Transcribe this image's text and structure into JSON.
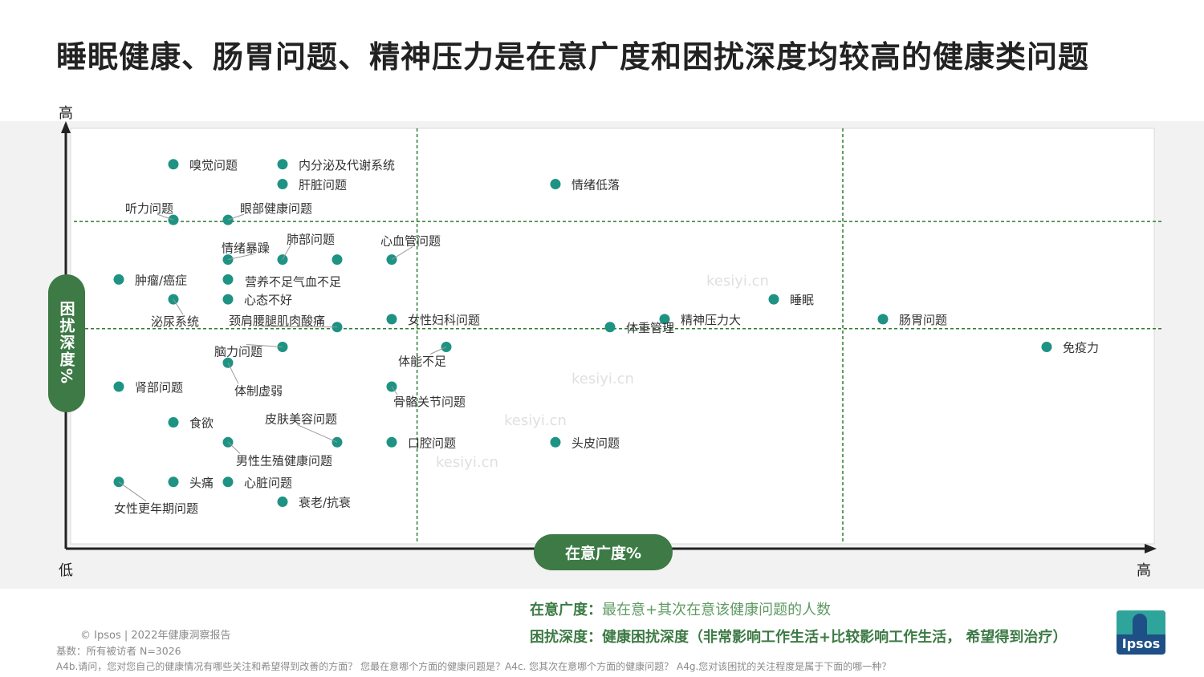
{
  "title": "睡眠健康、肠胃问题、精神压力是在意广度和困扰深度均较高的健康类问题",
  "axes": {
    "y_high": "高",
    "x_low": "低",
    "x_high": "高",
    "ylabel": "困扰深度%",
    "xlabel": "在意广度%"
  },
  "watermark": "kesiyi.cn",
  "notes": {
    "line1_key": "在意广度：",
    "line1_value": "最在意+其次在意该健康问题的人数",
    "line2_key": "困扰深度：",
    "line2_value": "健康困扰深度（非常影响工作生活+比较影响工作生活， 希望得到治疗）"
  },
  "footer": {
    "copyright": "© Ipsos | 2022年健康洞察报告",
    "base": "基数：所有被访者  N=3026",
    "question": "A4b.请问，您对您自己的健康情况有哪些关注和希望得到改善的方面？ 您最在意哪个方面的健康问题是？A4c. 您其次在意哪个方面的健康问题？ A4g.您对该困扰的关注程度是属于下面的哪一种？"
  },
  "logo_text": "Ipsos",
  "colors": {
    "point": "#1e9383",
    "accent": "#3d7a46",
    "gridline": "#2e7d32",
    "band": "#f2f2f2"
  },
  "chart_data": {
    "type": "scatter",
    "title": "睡眠健康、肠胃问题、精神压力是在意广度和困扰深度均较高的健康类问题",
    "xlabel": "在意广度%",
    "ylabel": "困扰深度%",
    "xlim": [
      0,
      100
    ],
    "ylim": [
      0,
      100
    ],
    "x_ticks": [
      "低",
      "高"
    ],
    "y_ticks": [
      "高"
    ],
    "grid": false,
    "reference_lines": {
      "x": [
        26,
        65
      ],
      "y": [
        82,
        55
      ]
    },
    "points": [
      {
        "name": "嗅觉问题",
        "x": 10,
        "y": 96
      },
      {
        "name": "内分泌及代谢系统",
        "x": 20,
        "y": 96
      },
      {
        "name": "肝脏问题",
        "x": 20,
        "y": 91
      },
      {
        "name": "情绪低落",
        "x": 45,
        "y": 91
      },
      {
        "name": "听力问题",
        "x": 10,
        "y": 82
      },
      {
        "name": "眼部健康问题",
        "x": 15,
        "y": 82
      },
      {
        "name": "情绪暴躁",
        "x": 15,
        "y": 72
      },
      {
        "name": "肺部问题",
        "x": 20,
        "y": 72
      },
      {
        "name": "气血不足",
        "x": 25,
        "y": 72
      },
      {
        "name": "心血管问题",
        "x": 30,
        "y": 72
      },
      {
        "name": "肿瘤/癌症",
        "x": 5,
        "y": 67
      },
      {
        "name": "营养不足",
        "x": 15,
        "y": 67
      },
      {
        "name": "泌尿系统",
        "x": 10,
        "y": 62
      },
      {
        "name": "心态不好",
        "x": 15,
        "y": 62
      },
      {
        "name": "睡眠",
        "x": 65,
        "y": 62
      },
      {
        "name": "女性妇科问题",
        "x": 30,
        "y": 57
      },
      {
        "name": "精神压力大",
        "x": 55,
        "y": 57
      },
      {
        "name": "肠胃问题",
        "x": 75,
        "y": 57
      },
      {
        "name": "颈肩腰腿肌肉酸痛",
        "x": 25,
        "y": 55
      },
      {
        "name": "体重管理",
        "x": 50,
        "y": 55
      },
      {
        "name": "脑力问题",
        "x": 20,
        "y": 50
      },
      {
        "name": "体能不足",
        "x": 35,
        "y": 50
      },
      {
        "name": "免疫力",
        "x": 90,
        "y": 50
      },
      {
        "name": "体制虚弱",
        "x": 15,
        "y": 46
      },
      {
        "name": "肾部问题",
        "x": 5,
        "y": 40
      },
      {
        "name": "骨骼关节问题",
        "x": 30,
        "y": 40
      },
      {
        "name": "食欲",
        "x": 10,
        "y": 31
      },
      {
        "name": "男性生殖健康问题",
        "x": 15,
        "y": 26
      },
      {
        "name": "皮肤美容问题",
        "x": 25,
        "y": 26
      },
      {
        "name": "口腔问题",
        "x": 30,
        "y": 26
      },
      {
        "name": "头皮问题",
        "x": 45,
        "y": 26
      },
      {
        "name": "女性更年期问题",
        "x": 5,
        "y": 16
      },
      {
        "name": "头痛",
        "x": 10,
        "y": 16
      },
      {
        "name": "心脏问题",
        "x": 15,
        "y": 16
      },
      {
        "name": "衰老/抗衰",
        "x": 20,
        "y": 11
      }
    ]
  }
}
